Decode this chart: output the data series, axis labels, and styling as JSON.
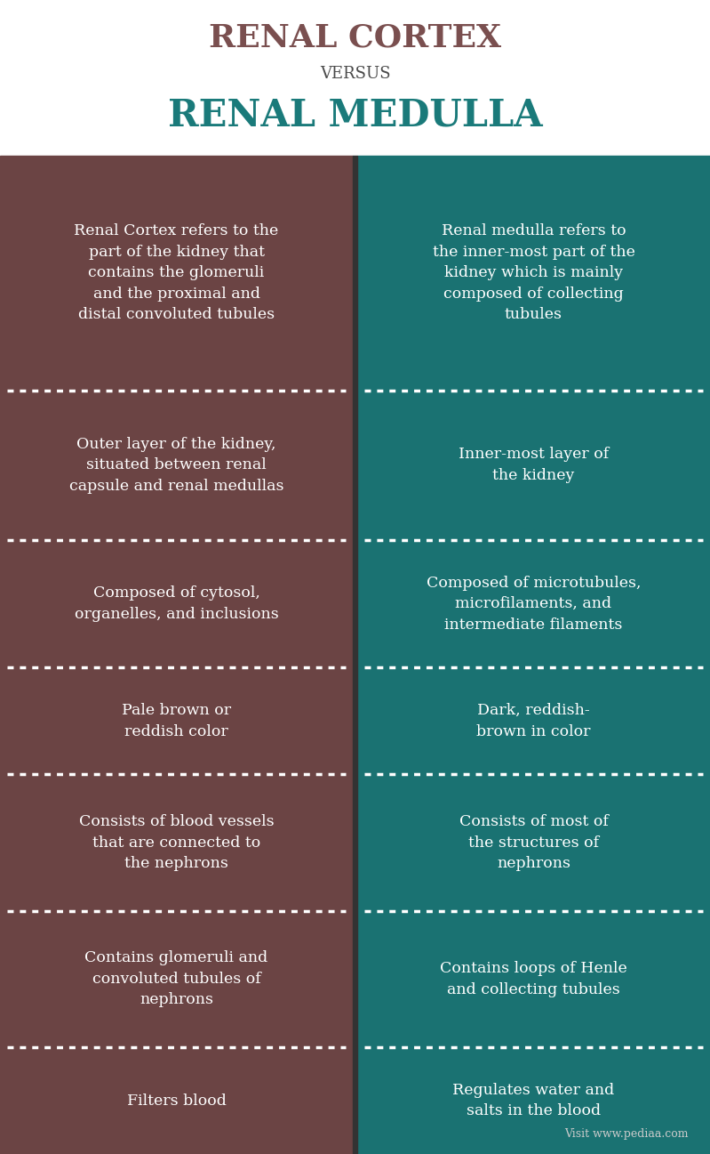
{
  "title1": "RENAL CORTEX",
  "versus": "VERSUS",
  "title2": "RENAL MEDULLA",
  "title1_color": "#7a4f4f",
  "versus_color": "#4a4a4a",
  "title2_color": "#1a7a7a",
  "left_bg": "#6b4444",
  "right_bg": "#1a7272",
  "text_color": "#ffffff",
  "divider_color": "#ffffff",
  "footer_color": "#cccccc",
  "left_cells": [
    "Renal Cortex refers to the\npart of the kidney that\ncontains the glomeruli\nand the proximal and\ndistal convoluted tubules",
    "Outer layer of the kidney,\nsituated between renal\ncapsule and renal medullas",
    "Composed of cytosol,\norganelles, and inclusions",
    "Pale brown or\nreddish color",
    "Consists of blood vessels\nthat are connected to\nthe nephrons",
    "Contains glomeruli and\nconvoluted tubules of\nnephrons",
    "Filters blood"
  ],
  "right_cells": [
    "Renal medulla refers to\nthe inner-most part of the\nkidney which is mainly\ncomposed of collecting\ntubules",
    "Inner-most layer of\nthe kidney",
    "Composed of microtubules,\nmicrofilaments, and\nintermediate filaments",
    "Dark, reddish-\nbrown in color",
    "Consists of most of\nthe structures of\nnephrons",
    "Contains loops of Henle\nand collecting tubules",
    "Regulates water and\nsalts in the blood"
  ],
  "footer": "Visit www.pediaa.com",
  "fig_width": 7.99,
  "fig_height": 12.97,
  "header_bg": "#ffffff",
  "gap_color": "#333333",
  "row_heights_rel": [
    5.5,
    3.5,
    3.0,
    2.5,
    3.2,
    3.2,
    2.5
  ]
}
